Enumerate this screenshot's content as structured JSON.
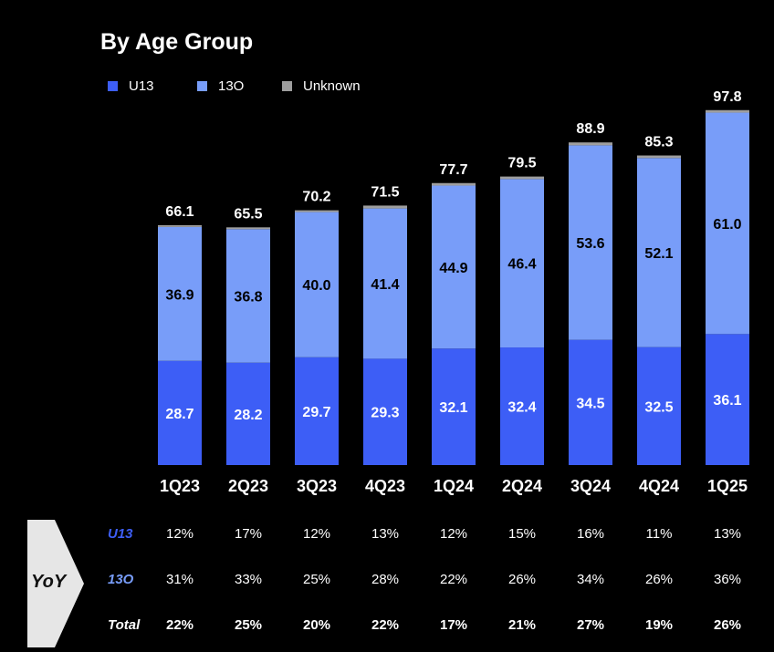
{
  "chart_data": {
    "type": "bar",
    "stacked": true,
    "title": "By Age Group",
    "categories": [
      "1Q23",
      "2Q23",
      "3Q23",
      "4Q23",
      "1Q24",
      "2Q24",
      "3Q24",
      "4Q24",
      "1Q25"
    ],
    "series": [
      {
        "name": "U13",
        "color": "#3d5ef6",
        "values": [
          28.7,
          28.2,
          29.7,
          29.3,
          32.1,
          32.4,
          34.5,
          32.5,
          36.1
        ]
      },
      {
        "name": "13O",
        "color": "#789df9",
        "values": [
          36.9,
          36.8,
          40.0,
          41.4,
          44.9,
          46.4,
          53.6,
          52.1,
          61.0
        ]
      },
      {
        "name": "Unknown",
        "color": "#9e9e9e",
        "values": [
          0.5,
          0.5,
          0.5,
          0.8,
          0.7,
          0.7,
          0.8,
          0.7,
          0.7
        ]
      }
    ],
    "totals": [
      "66.1",
      "65.5",
      "70.2",
      "71.5",
      "77.7",
      "79.5",
      "88.9",
      "85.3",
      "97.8"
    ],
    "u13_labels": [
      "28.7",
      "28.2",
      "29.7",
      "29.3",
      "32.1",
      "32.4",
      "34.5",
      "32.5",
      "36.1"
    ],
    "o13_labels": [
      "36.9",
      "36.8",
      "40.0",
      "41.4",
      "44.9",
      "46.4",
      "53.6",
      "52.1",
      "61.0"
    ],
    "ylim": [
      0,
      100
    ],
    "xlabel": "",
    "ylabel": "",
    "legend_position": "top-left"
  },
  "legend": {
    "u13": {
      "label": "U13",
      "color": "#3d5ef6"
    },
    "o13": {
      "label": "13O",
      "color": "#789df9"
    },
    "unknown": {
      "label": "Unknown",
      "color": "#9e9e9e"
    }
  },
  "yoy": {
    "label": "YoY",
    "rows": [
      {
        "label": "U13",
        "color": "#3d5ef6",
        "values": [
          "12%",
          "17%",
          "12%",
          "13%",
          "12%",
          "15%",
          "16%",
          "11%",
          "13%"
        ]
      },
      {
        "label": "13O",
        "color": "#789df9",
        "values": [
          "31%",
          "33%",
          "25%",
          "28%",
          "22%",
          "26%",
          "34%",
          "26%",
          "36%"
        ]
      },
      {
        "label": "Total",
        "color": "#ffffff",
        "values": [
          "22%",
          "25%",
          "20%",
          "22%",
          "17%",
          "21%",
          "27%",
          "19%",
          "26%"
        ]
      }
    ]
  }
}
